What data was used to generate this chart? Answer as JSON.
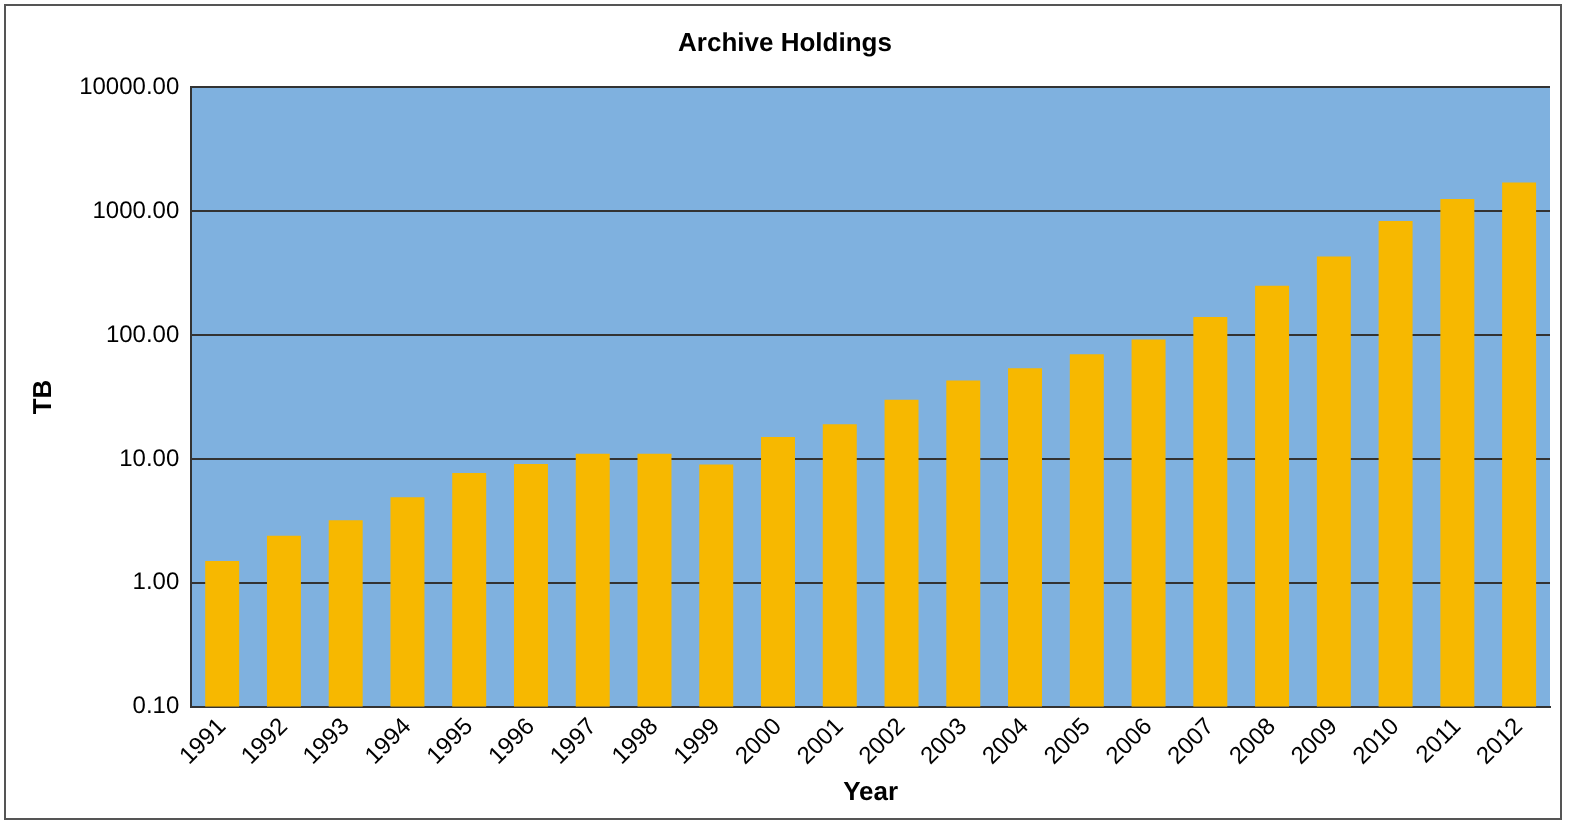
{
  "chart_data": {
    "type": "bar",
    "title": "Archive Holdings",
    "xlabel": "Year",
    "ylabel": "TB",
    "categories": [
      "1991",
      "1992",
      "1993",
      "1994",
      "1995",
      "1996",
      "1997",
      "1998",
      "1999",
      "2000",
      "2001",
      "2002",
      "2003",
      "2004",
      "2005",
      "2006",
      "2007",
      "2008",
      "2009",
      "2010",
      "2011",
      "2012"
    ],
    "values": [
      1.5,
      2.4,
      3.2,
      4.9,
      7.7,
      9.1,
      11,
      11,
      9,
      15,
      19,
      30,
      43,
      54,
      70,
      92,
      140,
      250,
      430,
      830,
      1250,
      1700
    ],
    "color": "#f7b800",
    "log": true,
    "ylim": [
      0.1,
      10000
    ],
    "yticks": [
      {
        "value": 0.1,
        "label": "0.10"
      },
      {
        "value": 1,
        "label": "1.00"
      },
      {
        "value": 10,
        "label": "10.00"
      },
      {
        "value": 100,
        "label": "100.00"
      },
      {
        "value": 1000,
        "label": "1000.00"
      },
      {
        "value": 10000,
        "label": "10000.00"
      }
    ],
    "grid": "y"
  }
}
